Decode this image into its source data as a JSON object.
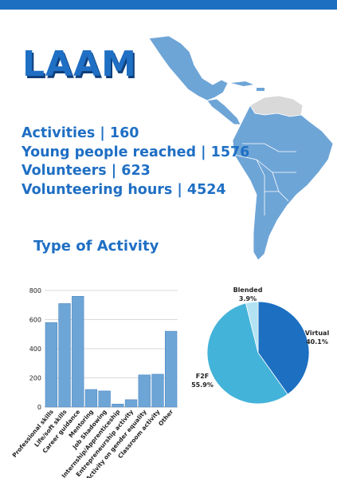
{
  "header": {
    "title": "LAAM"
  },
  "stats": [
    {
      "label": "Activities",
      "sep": "  |",
      "value": "160"
    },
    {
      "label": "Young people reached",
      "sep": " |",
      "value": "1576"
    },
    {
      "label": "Volunteers",
      "sep": " |",
      "value": "623"
    },
    {
      "label": "Volunteering hours",
      "sep": " | ",
      "value": "4524"
    }
  ],
  "section": {
    "title": "Type of Activity"
  },
  "colors": {
    "accent": "#1f6fc4",
    "bar": "#6ea5d7",
    "bar_edge": "#4b87c0",
    "map": "#6ea5d7",
    "map_gray": "#d9d9d9",
    "virtual": "#1c6fc1",
    "f2f": "#43b3d9",
    "blended": "#b3e3f3"
  },
  "chart_data": [
    {
      "type": "bar",
      "categories": [
        "Professional skills",
        "Life/soft skills",
        "Career guidance",
        "Mentoring",
        "Job Shadowing",
        "Internship/Apprenticeship",
        "Entrepreneurship activity",
        "Activity on gender equality",
        "Classroom activity",
        "Other"
      ],
      "values": [
        580,
        710,
        760,
        120,
        110,
        20,
        50,
        220,
        225,
        520
      ],
      "ylim": [
        0,
        800
      ],
      "yticks": [
        0,
        200,
        400,
        600,
        800
      ],
      "grid": true
    },
    {
      "type": "pie",
      "slices": [
        {
          "name": "Virtual",
          "value": 40.1,
          "label": "40.1%"
        },
        {
          "name": "F2F",
          "value": 55.9,
          "label": "55.9%"
        },
        {
          "name": "Blended",
          "value": 3.9,
          "label": "3.9%"
        }
      ]
    }
  ]
}
